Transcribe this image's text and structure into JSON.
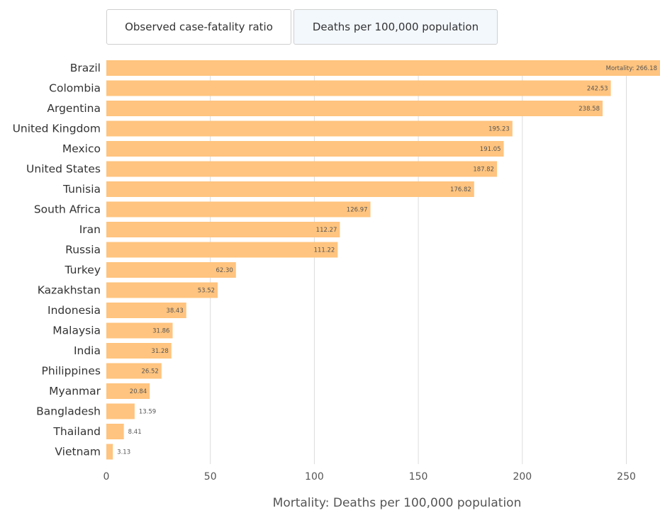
{
  "tabs": [
    {
      "label": "Observed case-fatality ratio",
      "active": false
    },
    {
      "label": "Deaths per 100,000 population",
      "active": true
    }
  ],
  "chart_data": {
    "type": "bar",
    "orientation": "horizontal",
    "categories": [
      "Brazil",
      "Colombia",
      "Argentina",
      "United Kingdom",
      "Mexico",
      "United States",
      "Tunisia",
      "South Africa",
      "Iran",
      "Russia",
      "Turkey",
      "Kazakhstan",
      "Indonesia",
      "Malaysia",
      "India",
      "Philippines",
      "Myanmar",
      "Bangladesh",
      "Thailand",
      "Vietnam"
    ],
    "values": [
      266.18,
      242.53,
      238.58,
      195.23,
      191.05,
      187.82,
      176.82,
      126.97,
      112.27,
      111.22,
      62.3,
      53.52,
      38.43,
      31.86,
      31.28,
      26.52,
      20.84,
      13.59,
      8.41,
      3.13
    ],
    "value_labels": [
      "Mortality: 266.18",
      "242.53",
      "238.58",
      "195.23",
      "191.05",
      "187.82",
      "176.82",
      "126.97",
      "112.27",
      "111.22",
      "62.30",
      "53.52",
      "38.43",
      "31.86",
      "31.28",
      "26.52",
      "20.84",
      "13.59",
      "8.41",
      "3.13"
    ],
    "xlabel": "Mortality: Deaths per 100,000 population",
    "xticks": [
      0,
      50,
      100,
      150,
      200,
      250
    ],
    "xlim": [
      0,
      266.18
    ],
    "grid": true,
    "bar_color": "#ffc47f"
  }
}
